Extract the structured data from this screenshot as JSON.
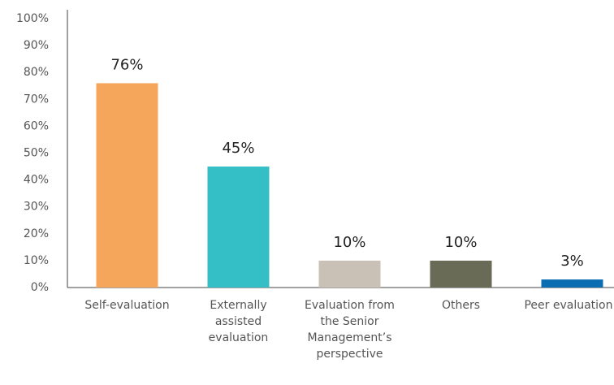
{
  "chart_data": {
    "type": "bar",
    "categories": [
      "Self-evaluation",
      "Externally assisted evaluation",
      "Evaluation from the Senior Management’s perspective",
      "Others",
      "Peer evaluation"
    ],
    "values": [
      76,
      45,
      10,
      10,
      3
    ],
    "value_labels": [
      "76%",
      "45%",
      "10%",
      "10%",
      "3%"
    ],
    "colors": [
      "#f5a65b",
      "#34bfc6",
      "#c9c0b6",
      "#6a6b56",
      "#0b6db2"
    ],
    "ylim": [
      0,
      100
    ],
    "yticks": [
      {
        "value": 0,
        "label": "0%"
      },
      {
        "value": 10,
        "label": "10%"
      },
      {
        "value": 20,
        "label": "20%"
      },
      {
        "value": 30,
        "label": "30%"
      },
      {
        "value": 40,
        "label": "40%"
      },
      {
        "value": 50,
        "label": "50%"
      },
      {
        "value": 60,
        "label": "60%"
      },
      {
        "value": 70,
        "label": "70%"
      },
      {
        "value": 80,
        "label": "80%"
      },
      {
        "value": 90,
        "label": "90%"
      },
      {
        "value": 100,
        "label": "100%"
      }
    ],
    "grid": false
  }
}
